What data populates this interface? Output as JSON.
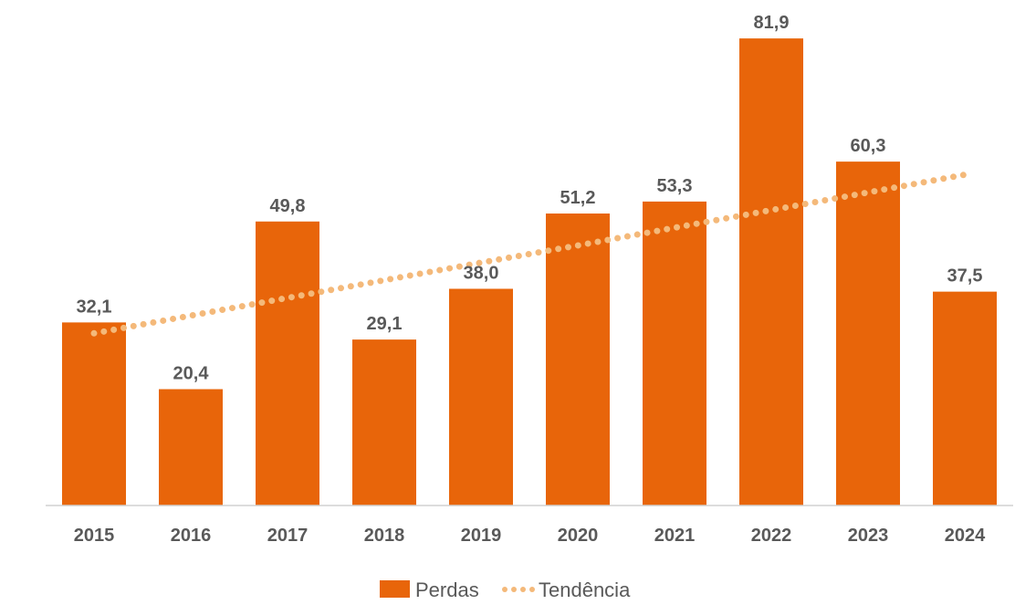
{
  "chart_data": {
    "type": "bar",
    "title": "",
    "xlabel": "",
    "ylabel": "",
    "ylim": [
      0,
      85
    ],
    "grid": false,
    "legend_position": "bottom",
    "categories": [
      "2015",
      "2016",
      "2017",
      "2018",
      "2019",
      "2020",
      "2021",
      "2022",
      "2023",
      "2024"
    ],
    "series": [
      {
        "name": "Perdas",
        "type": "bar",
        "color": "#E8650A",
        "values": [
          32.1,
          20.4,
          49.8,
          29.1,
          38.0,
          51.2,
          53.3,
          81.9,
          60.3,
          37.5
        ],
        "labels": [
          "32,1",
          "20,4",
          "49,8",
          "29,1",
          "38,0",
          "51,2",
          "53,3",
          "81,9",
          "60,3",
          "37,5"
        ]
      },
      {
        "name": "Tendência",
        "type": "line",
        "style": "dotted",
        "color": "#F4B97A",
        "values": [
          30.2,
          33.3,
          36.4,
          39.5,
          42.6,
          45.6,
          48.7,
          51.8,
          54.9,
          58.0
        ]
      }
    ]
  }
}
